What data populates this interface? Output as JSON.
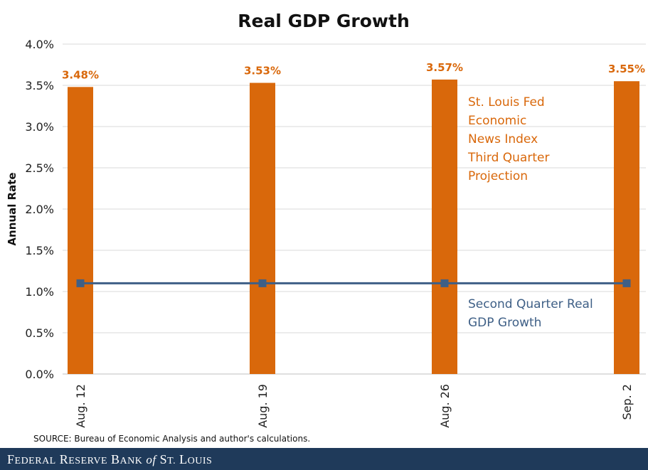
{
  "colors": {
    "bar": "#d9680b",
    "line": "#3e5f86",
    "grid": "#d9d9d9",
    "footer_bg": "#1f3a5a"
  },
  "chart_data": {
    "type": "bar",
    "title": "Real GDP Growth",
    "ylabel": "Annual Rate",
    "xlabel": "",
    "ylim": [
      0,
      4.0
    ],
    "yticks": [
      "0.0%",
      "0.5%",
      "1.0%",
      "1.5%",
      "2.0%",
      "2.5%",
      "3.0%",
      "3.5%",
      "4.0%"
    ],
    "categories": [
      "Aug. 12",
      "Aug. 19",
      "Aug. 26",
      "Sep. 2"
    ],
    "series": [
      {
        "name": "St. Louis Fed Economic News Index Third Quarter Projection",
        "kind": "bar",
        "values": [
          3.48,
          3.53,
          3.57,
          3.55
        ],
        "labels": [
          "3.48%",
          "3.53%",
          "3.57%",
          "3.55%"
        ]
      },
      {
        "name": "Second Quarter Real GDP Growth",
        "kind": "line",
        "values": [
          1.1,
          1.1,
          1.1,
          1.1
        ]
      }
    ],
    "annotations": {
      "bar_series": [
        "St. Louis Fed",
        "Economic",
        "News Index",
        "Third Quarter",
        "Projection"
      ],
      "line_series": [
        "Second Quarter Real",
        "GDP Growth"
      ]
    }
  },
  "source": "SOURCE: Bureau of Economic Analysis and author's calculations.",
  "footer": {
    "text": "Federal Reserve Bank of St. Louis"
  }
}
